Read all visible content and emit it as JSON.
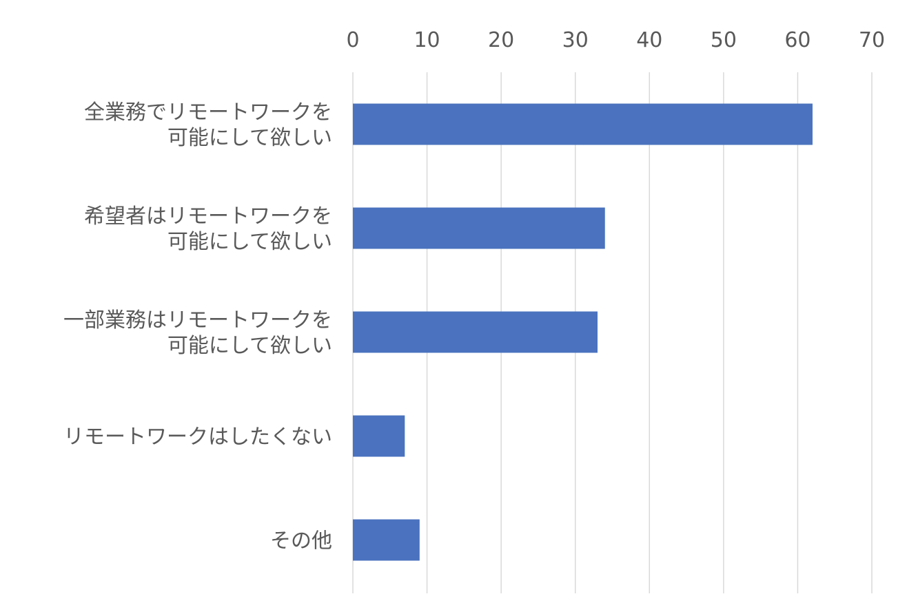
{
  "chart_data": {
    "type": "bar",
    "orientation": "horizontal",
    "title": "",
    "xlabel": "",
    "ylabel": "",
    "categories": [
      [
        "全業務でリモートワークを",
        "可能にして欲しい"
      ],
      [
        "希望者はリモートワークを",
        "可能にして欲しい"
      ],
      [
        "一部業務はリモートワークを",
        "可能にして欲しい"
      ],
      [
        "リモートワークはしたくない"
      ],
      [
        "その他"
      ]
    ],
    "values": [
      62,
      34,
      33,
      7,
      9
    ],
    "xlim": [
      0,
      70
    ],
    "x_ticks": [
      0,
      10,
      20,
      30,
      40,
      50,
      60,
      70
    ],
    "x_axis_position": "top",
    "grid": true,
    "legend": "none",
    "bar_color": "#4a72be",
    "grid_color": "#d9d9d9",
    "text_color": "#595959"
  }
}
